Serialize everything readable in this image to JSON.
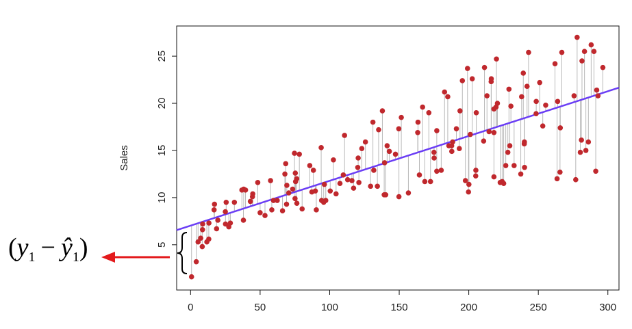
{
  "chart_data": {
    "type": "scatter",
    "title": "",
    "xlabel": "",
    "ylabel": "Sales",
    "xlim": [
      -10,
      308
    ],
    "ylim": [
      0.2,
      28.2
    ],
    "x_ticks": [
      0,
      50,
      100,
      150,
      200,
      250,
      300
    ],
    "y_ticks": [
      5,
      10,
      15,
      20,
      25
    ],
    "grid": false,
    "regression_line": {
      "intercept": 7.03,
      "slope": 0.0475,
      "color": "#6a3df5"
    },
    "point_color": "#c0282d",
    "residual_color": "#b8b8b8",
    "highlighted_point_index": 0,
    "annotation": {
      "brace_label": [
        "(",
        "y",
        "1",
        "−",
        "ŷ",
        "1",
        ")"
      ],
      "arrow_color": "#e31a1c"
    },
    "points": [
      [
        0.7,
        1.6
      ],
      [
        4.1,
        3.2
      ],
      [
        5.4,
        5.3
      ],
      [
        7.3,
        5.7
      ],
      [
        8.4,
        4.8
      ],
      [
        8.6,
        6.6
      ],
      [
        8.7,
        7.2
      ],
      [
        11.7,
        5.3
      ],
      [
        13.1,
        5.6
      ],
      [
        13.2,
        7.3
      ],
      [
        16.9,
        8.7
      ],
      [
        17.2,
        9.3
      ],
      [
        18.7,
        6.7
      ],
      [
        19.6,
        7.6
      ],
      [
        25.0,
        8.5
      ],
      [
        25.1,
        7.2
      ],
      [
        25.6,
        9.5
      ],
      [
        27.5,
        6.9
      ],
      [
        28.6,
        7.3
      ],
      [
        31.5,
        9.5
      ],
      [
        36.9,
        10.8
      ],
      [
        38.0,
        7.6
      ],
      [
        38.2,
        10.9
      ],
      [
        39.5,
        10.8
      ],
      [
        43.0,
        9.6
      ],
      [
        44.5,
        10.1
      ],
      [
        44.7,
        10.4
      ],
      [
        48.3,
        11.6
      ],
      [
        50.0,
        8.4
      ],
      [
        53.5,
        8.1
      ],
      [
        57.5,
        11.8
      ],
      [
        58.4,
        8.7
      ],
      [
        59.6,
        9.7
      ],
      [
        62.3,
        9.7
      ],
      [
        66.1,
        8.6
      ],
      [
        67.8,
        12.5
      ],
      [
        68.4,
        13.6
      ],
      [
        69.0,
        9.3
      ],
      [
        69.2,
        11.3
      ],
      [
        70.6,
        10.5
      ],
      [
        73.4,
        10.9
      ],
      [
        74.7,
        14.7
      ],
      [
        75.1,
        9.9
      ],
      [
        75.3,
        12.6
      ],
      [
        75.5,
        11.7
      ],
      [
        76.3,
        12.0
      ],
      [
        76.4,
        9.4
      ],
      [
        78.2,
        14.6
      ],
      [
        80.2,
        8.8
      ],
      [
        85.7,
        13.4
      ],
      [
        87.2,
        10.6
      ],
      [
        88.3,
        12.9
      ],
      [
        89.7,
        10.7
      ],
      [
        90.4,
        8.7
      ],
      [
        93.9,
        15.3
      ],
      [
        94.2,
        9.7
      ],
      [
        95.7,
        9.5
      ],
      [
        96.2,
        11.4
      ],
      [
        97.2,
        9.7
      ],
      [
        100.4,
        10.7
      ],
      [
        102.7,
        14.0
      ],
      [
        104.6,
        10.4
      ],
      [
        107.4,
        11.5
      ],
      [
        109.8,
        12.4
      ],
      [
        110.7,
        16.6
      ],
      [
        112.9,
        11.9
      ],
      [
        116.0,
        11.8
      ],
      [
        117.2,
        11.0
      ],
      [
        120.2,
        13.2
      ],
      [
        120.5,
        14.2
      ],
      [
        121.0,
        11.6
      ],
      [
        123.1,
        15.2
      ],
      [
        125.7,
        15.9
      ],
      [
        129.4,
        11.2
      ],
      [
        131.1,
        18.0
      ],
      [
        131.7,
        12.9
      ],
      [
        134.3,
        11.2
      ],
      [
        135.2,
        17.2
      ],
      [
        137.9,
        19.2
      ],
      [
        139.2,
        10.3
      ],
      [
        139.5,
        13.7
      ],
      [
        140.3,
        10.3
      ],
      [
        141.3,
        15.5
      ],
      [
        142.9,
        14.9
      ],
      [
        147.3,
        14.6
      ],
      [
        149.7,
        17.3
      ],
      [
        149.8,
        10.1
      ],
      [
        151.5,
        18.5
      ],
      [
        156.6,
        10.5
      ],
      [
        163.3,
        16.9
      ],
      [
        163.5,
        18.0
      ],
      [
        164.5,
        12.4
      ],
      [
        166.8,
        19.6
      ],
      [
        168.4,
        11.7
      ],
      [
        171.3,
        19.0
      ],
      [
        172.5,
        11.7
      ],
      [
        175.0,
        14.8
      ],
      [
        175.1,
        14.2
      ],
      [
        177.0,
        17.1
      ],
      [
        177.0,
        12.8
      ],
      [
        180.2,
        12.9
      ],
      [
        182.6,
        21.2
      ],
      [
        184.9,
        20.7
      ],
      [
        185.7,
        15.5
      ],
      [
        187.7,
        15.5
      ],
      [
        187.8,
        14.9
      ],
      [
        188.4,
        15.9
      ],
      [
        191.1,
        17.3
      ],
      [
        193.2,
        15.2
      ],
      [
        193.7,
        19.2
      ],
      [
        195.4,
        22.4
      ],
      [
        197.6,
        11.8
      ],
      [
        199.1,
        23.7
      ],
      [
        199.8,
        10.6
      ],
      [
        200.1,
        11.4
      ],
      [
        201.1,
        16.7
      ],
      [
        202.5,
        22.6
      ],
      [
        205.0,
        12.3
      ],
      [
        205.1,
        12.9
      ],
      [
        205.4,
        19.0
      ],
      [
        210.7,
        16.0
      ],
      [
        211.3,
        23.8
      ],
      [
        213.1,
        20.8
      ],
      [
        214.6,
        17.0
      ],
      [
        216.1,
        22.3
      ],
      [
        216.2,
        22.6
      ],
      [
        218.1,
        19.4
      ],
      [
        218.1,
        16.9
      ],
      [
        218.1,
        12.2
      ],
      [
        219.6,
        19.6
      ],
      [
        219.9,
        24.7
      ],
      [
        220.6,
        20.0
      ],
      [
        222.6,
        11.6
      ],
      [
        224.0,
        11.7
      ],
      [
        225.1,
        11.5
      ],
      [
        226.6,
        13.4
      ],
      [
        228.1,
        14.8
      ],
      [
        228.9,
        21.5
      ],
      [
        229.5,
        15.5
      ],
      [
        230.3,
        19.7
      ],
      [
        232.6,
        13.4
      ],
      [
        237.4,
        12.5
      ],
      [
        238.0,
        20.7
      ],
      [
        239.2,
        23.2
      ],
      [
        239.9,
        15.7
      ],
      [
        240.0,
        15.9
      ],
      [
        240.1,
        13.2
      ],
      [
        241.9,
        21.8
      ],
      [
        243.0,
        25.4
      ],
      [
        248.4,
        18.9
      ],
      [
        248.5,
        20.2
      ],
      [
        251.0,
        22.2
      ],
      [
        253.2,
        17.6
      ],
      [
        255.3,
        19.8
      ],
      [
        262.0,
        24.2
      ],
      [
        263.5,
        12.0
      ],
      [
        263.9,
        20.2
      ],
      [
        265.6,
        12.7
      ],
      [
        265.8,
        17.4
      ],
      [
        266.9,
        25.4
      ],
      [
        275.7,
        20.8
      ],
      [
        276.9,
        11.9
      ],
      [
        277.9,
        27.0
      ],
      [
        280.2,
        14.8
      ],
      [
        281.0,
        16.1
      ],
      [
        281.4,
        24.5
      ],
      [
        283.2,
        25.5
      ],
      [
        284.2,
        15.0
      ],
      [
        286.0,
        15.9
      ],
      [
        288.0,
        26.2
      ],
      [
        290.0,
        25.5
      ],
      [
        291.3,
        12.8
      ],
      [
        292.0,
        21.4
      ],
      [
        292.9,
        20.8
      ],
      [
        296.4,
        23.8
      ]
    ]
  }
}
